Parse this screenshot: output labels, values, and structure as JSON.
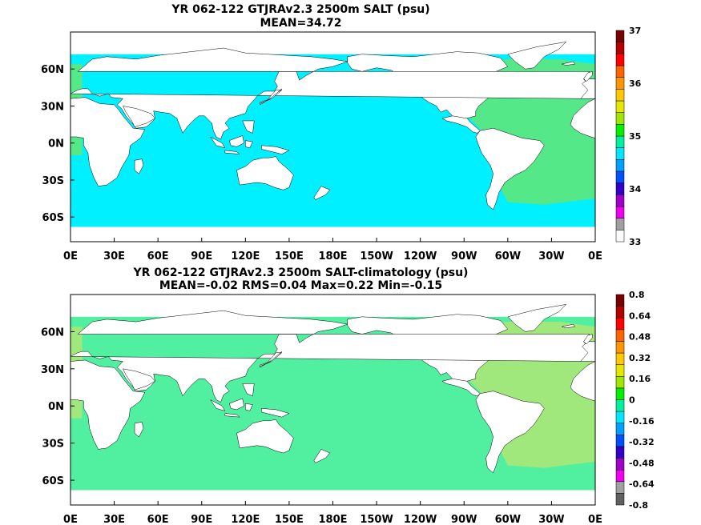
{
  "chart_data": [
    {
      "type": "heatmap",
      "title": "YR 062-122 GTJRAv2.3 2500m SALT (psu)",
      "subtitle": "MEAN=34.72",
      "x_ticks": [
        "0E",
        "30E",
        "60E",
        "90E",
        "120E",
        "150E",
        "180E",
        "150W",
        "120W",
        "90W",
        "60W",
        "30W",
        "0E"
      ],
      "y_ticks": [
        "60N",
        "30N",
        "0N",
        "30S",
        "60S"
      ],
      "x_tick_lon": [
        0,
        30,
        60,
        90,
        120,
        150,
        180,
        210,
        240,
        270,
        300,
        330,
        360
      ],
      "y_tick_lat": [
        60,
        30,
        0,
        -30,
        -60
      ],
      "xlim": [
        0,
        360
      ],
      "ylim": [
        -80,
        90
      ],
      "colorbar": {
        "range": [
          33,
          37
        ],
        "labels": [
          "37",
          "36",
          "35",
          "34",
          "33"
        ],
        "label_values": [
          37,
          36,
          35,
          34,
          33
        ],
        "colors": [
          "#fbfbfb",
          "#a0a0a0",
          "#f000f0",
          "#a000c8",
          "#3200c8",
          "#0050ff",
          "#00a0ff",
          "#00e6ff",
          "#00f0a0",
          "#00f000",
          "#a0e600",
          "#e6e600",
          "#ffc800",
          "#ff9600",
          "#ff6400",
          "#ff0000",
          "#b40000",
          "#780000"
        ]
      },
      "dominant_fill": "#00f0ff",
      "atlantic_fill": "#55e888",
      "mean": 34.72
    },
    {
      "type": "heatmap",
      "title": "YR 062-122 GTJRAv2.3 2500m SALT-climatology (psu)",
      "subtitle": "MEAN=-0.02   RMS=0.04   Max=0.22   Min=-0.15",
      "x_ticks": [
        "0E",
        "30E",
        "60E",
        "90E",
        "120E",
        "150E",
        "180E",
        "150W",
        "120W",
        "90W",
        "60W",
        "30W",
        "0E"
      ],
      "y_ticks": [
        "60N",
        "30N",
        "0N",
        "30S",
        "60S"
      ],
      "x_tick_lon": [
        0,
        30,
        60,
        90,
        120,
        150,
        180,
        210,
        240,
        270,
        300,
        330,
        360
      ],
      "y_tick_lat": [
        60,
        30,
        0,
        -30,
        -60
      ],
      "xlim": [
        0,
        360
      ],
      "ylim": [
        -80,
        90
      ],
      "colorbar": {
        "range": [
          -0.8,
          0.8
        ],
        "labels": [
          "0.8",
          "0.64",
          "0.48",
          "0.32",
          "0.16",
          "0",
          "-0.16",
          "-0.32",
          "-0.48",
          "-0.64",
          "-0.8"
        ],
        "label_values": [
          0.8,
          0.64,
          0.48,
          0.32,
          0.16,
          0,
          -0.16,
          -0.32,
          -0.48,
          -0.64,
          -0.8
        ],
        "colors": [
          "#606060",
          "#a0a0a0",
          "#f000f0",
          "#a000c8",
          "#3200c8",
          "#0050ff",
          "#00a0ff",
          "#00e6ff",
          "#00f0a0",
          "#00f000",
          "#a0e600",
          "#e6e600",
          "#ffc800",
          "#ff9600",
          "#ff6400",
          "#ff0000",
          "#b40000",
          "#780000"
        ]
      },
      "dominant_fill": "#50f0a0",
      "atlantic_fill": "#a0e87c",
      "mean": -0.02,
      "rms": 0.04,
      "max": 0.22,
      "min": -0.15
    }
  ]
}
